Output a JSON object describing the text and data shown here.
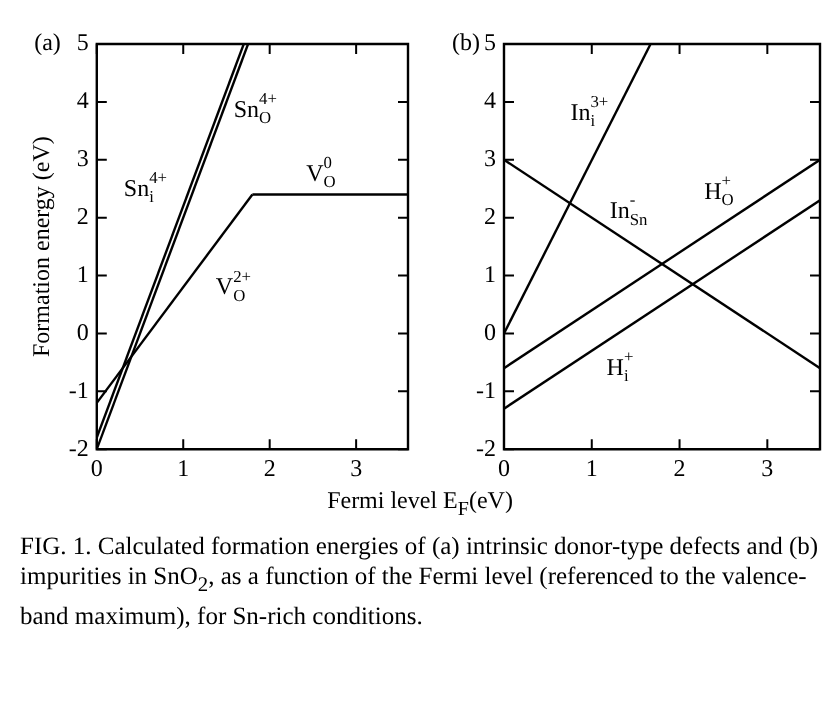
{
  "chart_data": [
    {
      "type": "line",
      "title": "(a)",
      "ylabel": "Formation energy (eV)",
      "xlabel": "Fermi level E$_{F}$(eV)",
      "xlim": [
        0,
        3.6
      ],
      "ylim": [
        -2,
        5
      ],
      "xticks": [
        0,
        1,
        2,
        3
      ],
      "yticks": [
        -2,
        -1,
        0,
        1,
        2,
        3,
        4,
        5
      ],
      "grid": false,
      "marker": "none",
      "series": [
        {
          "name": "Sn$_{i}$$^{4+}$",
          "color": "#000000",
          "x": [
            0,
            1.7
          ],
          "values": [
            -1.8,
            5
          ]
        },
        {
          "name": "Sn$_{O}$$^{4+}$",
          "color": "#000000",
          "x": [
            0,
            1.75
          ],
          "values": [
            -2,
            5
          ]
        },
        {
          "name": "V$_{O}$$^{2+}$",
          "color": "#000000",
          "x": [
            0,
            1.8
          ],
          "values": [
            -1.2,
            2.4
          ]
        },
        {
          "name": "V$_{O}$$^{0}$",
          "color": "#000000",
          "x": [
            1.8,
            3.6
          ],
          "values": [
            2.4,
            2.4
          ]
        }
      ]
    },
    {
      "type": "line",
      "title": "(b)",
      "xlim": [
        0,
        3.6
      ],
      "ylim": [
        -2,
        5
      ],
      "xticks": [
        0,
        1,
        2,
        3
      ],
      "yticks": [
        -2,
        -1,
        0,
        1,
        2,
        3,
        4,
        5
      ],
      "grid": false,
      "marker": "none",
      "series": [
        {
          "name": "In$_{i}$$^{3+}$",
          "color": "#000000",
          "x": [
            0,
            1.67
          ],
          "values": [
            0,
            5
          ]
        },
        {
          "name": "In$_{Sn}$$^{-}$",
          "color": "#000000",
          "x": [
            0,
            3.6
          ],
          "values": [
            3,
            -0.6
          ]
        },
        {
          "name": "H$_{O}$$^{+}$",
          "color": "#000000",
          "x": [
            0,
            3.6
          ],
          "values": [
            -0.6,
            3
          ]
        },
        {
          "name": "H$_{i}$$^{+}$",
          "color": "#000000",
          "x": [
            0,
            3.6
          ],
          "values": [
            -1.3,
            2.3
          ]
        }
      ],
      "annotations": [
        "FIG. 1.  Calculated formation energies of (a) intrinsic donor-type defects and (b) impurities in SnO$_{2}$, as a function of the Fermi level (referenced to the valence-band maximum), for Sn-rich conditions."
      ]
    }
  ]
}
